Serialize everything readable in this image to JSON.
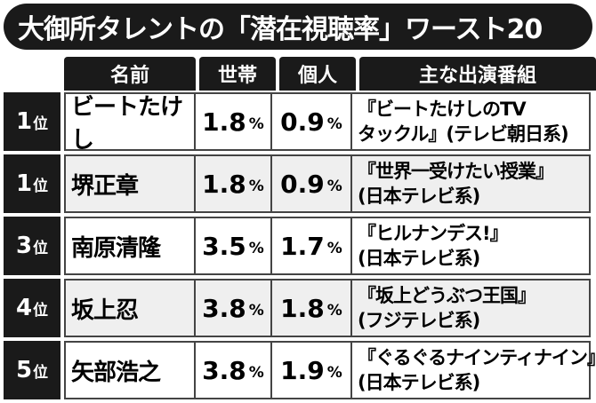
{
  "title": "大御所タレントの「潜在視聴率」ワースト20",
  "headers": {
    "name": "名前",
    "household": "世帯",
    "individual": "個人",
    "program": "主な出演番組"
  },
  "unit": "%",
  "rank_suffix": "位",
  "rows": [
    {
      "rank": "1",
      "name": "ビートたけし",
      "household": "1.8",
      "individual": "0.9",
      "program_line1": "『ビートたけしのTV",
      "program_line2": "タックル』(テレビ朝日系)"
    },
    {
      "rank": "1",
      "name": "堺正章",
      "household": "1.8",
      "individual": "0.9",
      "program_line1": "『世界一受けたい授業』",
      "program_line2": "(日本テレビ系)"
    },
    {
      "rank": "3",
      "name": "南原清隆",
      "household": "3.5",
      "individual": "1.7",
      "program_line1": "『ヒルナンデス!』",
      "program_line2": "(日本テレビ系)"
    },
    {
      "rank": "4",
      "name": "坂上忍",
      "household": "3.8",
      "individual": "1.8",
      "program_line1": "『坂上どうぶつ王国』",
      "program_line2": "(フジテレビ系)"
    },
    {
      "rank": "5",
      "name": "矢部浩之",
      "household": "3.8",
      "individual": "1.9",
      "program_line1": "『ぐるぐるナインティナイン』",
      "program_line2": "(日本テレビ系)"
    }
  ]
}
